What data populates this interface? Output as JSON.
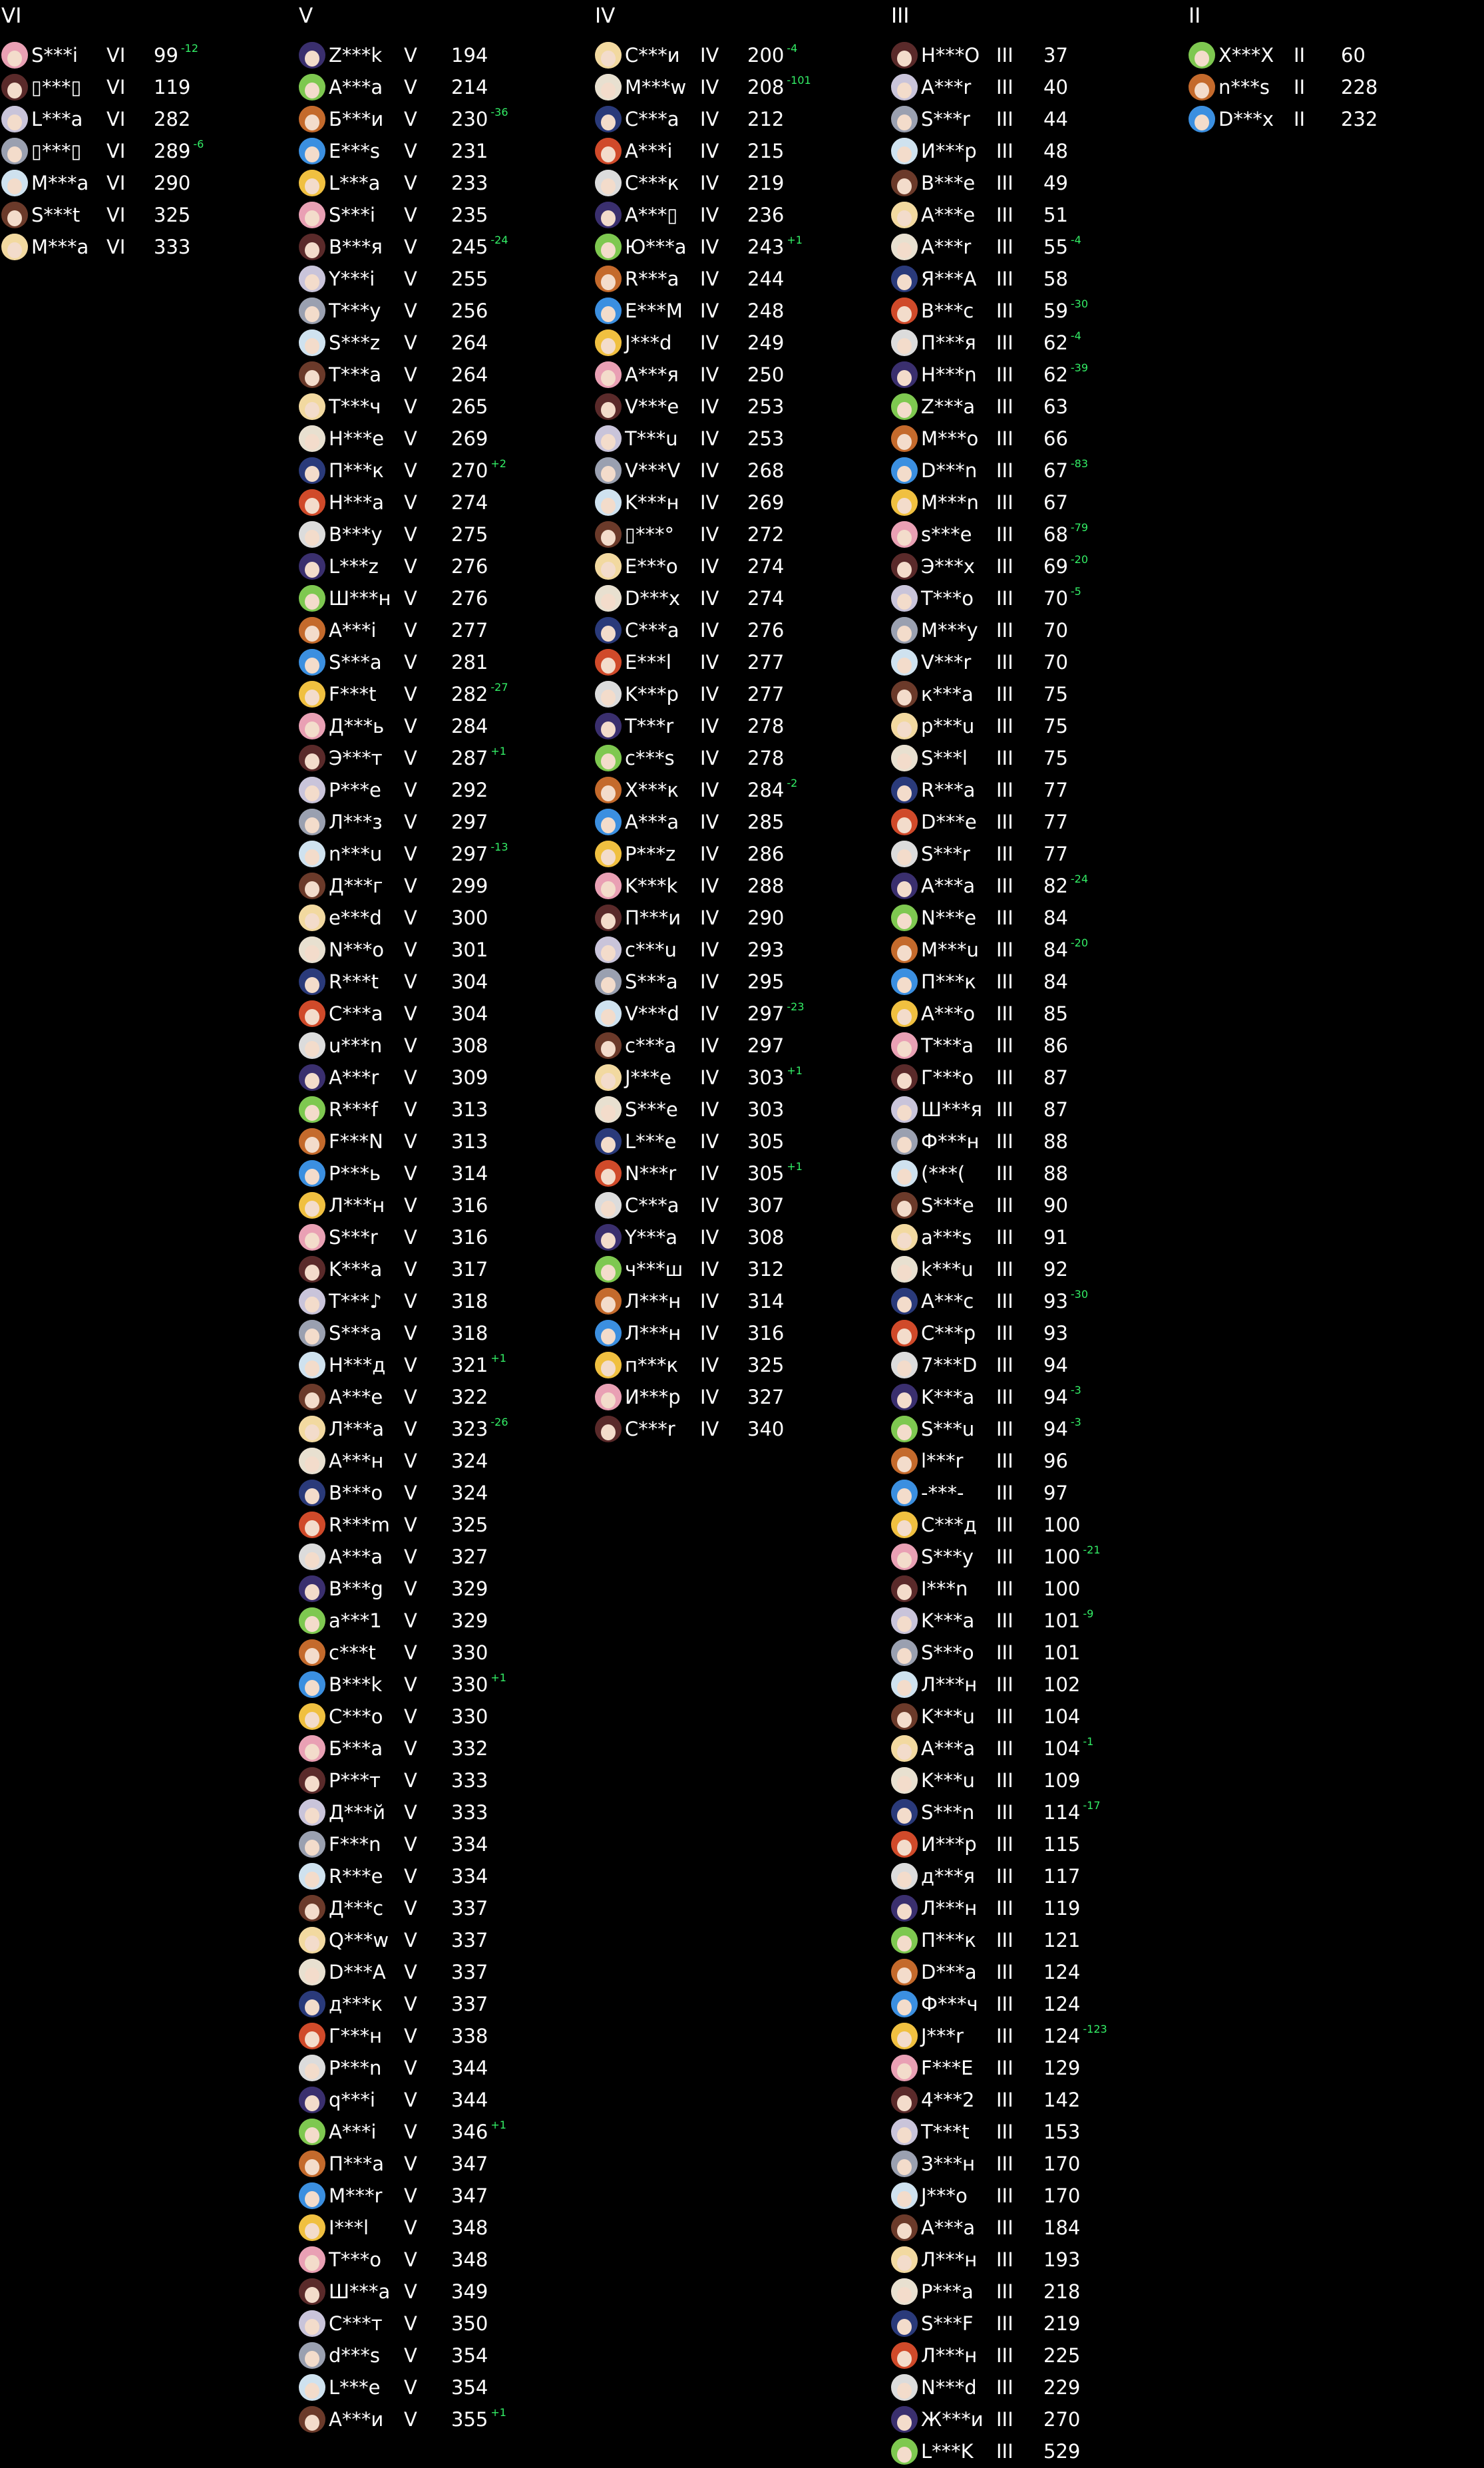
{
  "colors": {
    "background": "#000000",
    "text": "#ffffff",
    "delta": "#33ee66"
  },
  "columns": [
    {
      "header": "VI",
      "rows": [
        [
          "S***i",
          "VI",
          "99",
          "-12"
        ],
        [
          "▯***▯",
          "VI",
          "119",
          ""
        ],
        [
          "L***a",
          "VI",
          "282",
          ""
        ],
        [
          "▯***▯",
          "VI",
          "289",
          "-6"
        ],
        [
          "M***a",
          "VI",
          "290",
          ""
        ],
        [
          "S***t",
          "VI",
          "325",
          ""
        ],
        [
          "M***a",
          "VI",
          "333",
          ""
        ]
      ]
    },
    {
      "header": "V",
      "rows": [
        [
          "Z***k",
          "V",
          "194",
          ""
        ],
        [
          "A***a",
          "V",
          "214",
          ""
        ],
        [
          "Б***и",
          "V",
          "230",
          "-36"
        ],
        [
          "E***s",
          "V",
          "231",
          ""
        ],
        [
          "L***a",
          "V",
          "233",
          ""
        ],
        [
          "S***i",
          "V",
          "235",
          ""
        ],
        [
          "B***я",
          "V",
          "245",
          "-24"
        ],
        [
          "Y***i",
          "V",
          "255",
          ""
        ],
        [
          "T***y",
          "V",
          "256",
          ""
        ],
        [
          "S***z",
          "V",
          "264",
          ""
        ],
        [
          "T***a",
          "V",
          "264",
          ""
        ],
        [
          "T***ч",
          "V",
          "265",
          ""
        ],
        [
          "H***e",
          "V",
          "269",
          ""
        ],
        [
          "П***к",
          "V",
          "270",
          "+2"
        ],
        [
          "H***a",
          "V",
          "274",
          ""
        ],
        [
          "B***y",
          "V",
          "275",
          ""
        ],
        [
          "L***z",
          "V",
          "276",
          ""
        ],
        [
          "Ш***н",
          "V",
          "276",
          ""
        ],
        [
          "A***i",
          "V",
          "277",
          ""
        ],
        [
          "S***a",
          "V",
          "281",
          ""
        ],
        [
          "F***t",
          "V",
          "282",
          "-27"
        ],
        [
          "Д***ь",
          "V",
          "284",
          ""
        ],
        [
          "Э***т",
          "V",
          "287",
          "+1"
        ],
        [
          "P***e",
          "V",
          "292",
          ""
        ],
        [
          "Л***з",
          "V",
          "297",
          ""
        ],
        [
          "n***u",
          "V",
          "297",
          "-13"
        ],
        [
          "Д***г",
          "V",
          "299",
          ""
        ],
        [
          "e***d",
          "V",
          "300",
          ""
        ],
        [
          "N***o",
          "V",
          "301",
          ""
        ],
        [
          "R***t",
          "V",
          "304",
          ""
        ],
        [
          "C***a",
          "V",
          "304",
          ""
        ],
        [
          "u***n",
          "V",
          "308",
          ""
        ],
        [
          "A***r",
          "V",
          "309",
          ""
        ],
        [
          "R***f",
          "V",
          "313",
          ""
        ],
        [
          "F***N",
          "V",
          "313",
          ""
        ],
        [
          "P***ь",
          "V",
          "314",
          ""
        ],
        [
          "Л***н",
          "V",
          "316",
          ""
        ],
        [
          "S***r",
          "V",
          "316",
          ""
        ],
        [
          "K***a",
          "V",
          "317",
          ""
        ],
        [
          "T***♪",
          "V",
          "318",
          ""
        ],
        [
          "S***a",
          "V",
          "318",
          ""
        ],
        [
          "H***д",
          "V",
          "321",
          "+1"
        ],
        [
          "A***e",
          "V",
          "322",
          ""
        ],
        [
          "Л***a",
          "V",
          "323",
          "-26"
        ],
        [
          "A***н",
          "V",
          "324",
          ""
        ],
        [
          "B***o",
          "V",
          "324",
          ""
        ],
        [
          "R***m",
          "V",
          "325",
          ""
        ],
        [
          "A***a",
          "V",
          "327",
          ""
        ],
        [
          "B***g",
          "V",
          "329",
          ""
        ],
        [
          "a***1",
          "V",
          "329",
          ""
        ],
        [
          "c***t",
          "V",
          "330",
          ""
        ],
        [
          "B***k",
          "V",
          "330",
          "+1"
        ],
        [
          "C***o",
          "V",
          "330",
          ""
        ],
        [
          "Б***a",
          "V",
          "332",
          ""
        ],
        [
          "P***т",
          "V",
          "333",
          ""
        ],
        [
          "Д***й",
          "V",
          "333",
          ""
        ],
        [
          "F***n",
          "V",
          "334",
          ""
        ],
        [
          "R***e",
          "V",
          "334",
          ""
        ],
        [
          "Д***c",
          "V",
          "337",
          ""
        ],
        [
          "Q***w",
          "V",
          "337",
          ""
        ],
        [
          "D***A",
          "V",
          "337",
          ""
        ],
        [
          "д***к",
          "V",
          "337",
          ""
        ],
        [
          "Г***н",
          "V",
          "338",
          ""
        ],
        [
          "P***n",
          "V",
          "344",
          ""
        ],
        [
          "q***i",
          "V",
          "344",
          ""
        ],
        [
          "A***i",
          "V",
          "346",
          "+1"
        ],
        [
          "П***a",
          "V",
          "347",
          ""
        ],
        [
          "M***r",
          "V",
          "347",
          ""
        ],
        [
          "I***l",
          "V",
          "348",
          ""
        ],
        [
          "T***o",
          "V",
          "348",
          ""
        ],
        [
          "Ш***a",
          "V",
          "349",
          ""
        ],
        [
          "C***т",
          "V",
          "350",
          ""
        ],
        [
          "d***s",
          "V",
          "354",
          ""
        ],
        [
          "L***e",
          "V",
          "354",
          ""
        ],
        [
          "A***и",
          "V",
          "355",
          "+1"
        ]
      ]
    },
    {
      "header": "IV",
      "rows": [
        [
          "C***и",
          "IV",
          "200",
          "-4"
        ],
        [
          "M***w",
          "IV",
          "208",
          "-101"
        ],
        [
          "C***a",
          "IV",
          "212",
          ""
        ],
        [
          "A***i",
          "IV",
          "215",
          ""
        ],
        [
          "C***к",
          "IV",
          "219",
          ""
        ],
        [
          "A***▯",
          "IV",
          "236",
          ""
        ],
        [
          "Ю***a",
          "IV",
          "243",
          "+1"
        ],
        [
          "R***a",
          "IV",
          "244",
          ""
        ],
        [
          "E***M",
          "IV",
          "248",
          ""
        ],
        [
          "J***d",
          "IV",
          "249",
          ""
        ],
        [
          "A***я",
          "IV",
          "250",
          ""
        ],
        [
          "V***e",
          "IV",
          "253",
          ""
        ],
        [
          "T***u",
          "IV",
          "253",
          ""
        ],
        [
          "V***V",
          "IV",
          "268",
          ""
        ],
        [
          "K***н",
          "IV",
          "269",
          ""
        ],
        [
          "▯***°",
          "IV",
          "272",
          ""
        ],
        [
          "E***o",
          "IV",
          "274",
          ""
        ],
        [
          "D***x",
          "IV",
          "274",
          ""
        ],
        [
          "C***a",
          "IV",
          "276",
          ""
        ],
        [
          "E***l",
          "IV",
          "277",
          ""
        ],
        [
          "K***p",
          "IV",
          "277",
          ""
        ],
        [
          "T***r",
          "IV",
          "278",
          ""
        ],
        [
          "c***s",
          "IV",
          "278",
          ""
        ],
        [
          "X***к",
          "IV",
          "284",
          "-2"
        ],
        [
          "A***a",
          "IV",
          "285",
          ""
        ],
        [
          "P***z",
          "IV",
          "286",
          ""
        ],
        [
          "K***k",
          "IV",
          "288",
          ""
        ],
        [
          "П***и",
          "IV",
          "290",
          ""
        ],
        [
          "c***u",
          "IV",
          "293",
          ""
        ],
        [
          "S***a",
          "IV",
          "295",
          ""
        ],
        [
          "V***d",
          "IV",
          "297",
          "-23"
        ],
        [
          "c***a",
          "IV",
          "297",
          ""
        ],
        [
          "J***e",
          "IV",
          "303",
          "+1"
        ],
        [
          "S***e",
          "IV",
          "303",
          ""
        ],
        [
          "L***e",
          "IV",
          "305",
          ""
        ],
        [
          "N***r",
          "IV",
          "305",
          "+1"
        ],
        [
          "C***a",
          "IV",
          "307",
          ""
        ],
        [
          "Y***a",
          "IV",
          "308",
          ""
        ],
        [
          "ч***ш",
          "IV",
          "312",
          ""
        ],
        [
          "Л***н",
          "IV",
          "314",
          ""
        ],
        [
          "Л***н",
          "IV",
          "316",
          ""
        ],
        [
          "п***к",
          "IV",
          "325",
          ""
        ],
        [
          "И***p",
          "IV",
          "327",
          ""
        ],
        [
          "C***r",
          "IV",
          "340",
          ""
        ]
      ]
    },
    {
      "header": "III",
      "rows": [
        [
          "H***O",
          "III",
          "37",
          ""
        ],
        [
          "A***r",
          "III",
          "40",
          ""
        ],
        [
          "S***r",
          "III",
          "44",
          ""
        ],
        [
          "И***p",
          "III",
          "48",
          ""
        ],
        [
          "B***e",
          "III",
          "49",
          ""
        ],
        [
          "A***e",
          "III",
          "51",
          ""
        ],
        [
          "A***r",
          "III",
          "55",
          "-4"
        ],
        [
          "Я***A",
          "III",
          "58",
          ""
        ],
        [
          "B***c",
          "III",
          "59",
          "-30"
        ],
        [
          "П***я",
          "III",
          "62",
          "-4"
        ],
        [
          "H***n",
          "III",
          "62",
          "-39"
        ],
        [
          "Z***a",
          "III",
          "63",
          ""
        ],
        [
          "M***o",
          "III",
          "66",
          ""
        ],
        [
          "D***n",
          "III",
          "67",
          "-83"
        ],
        [
          "M***n",
          "III",
          "67",
          ""
        ],
        [
          "s***e",
          "III",
          "68",
          "-79"
        ],
        [
          "Э***x",
          "III",
          "69",
          "-20"
        ],
        [
          "T***o",
          "III",
          "70",
          "-5"
        ],
        [
          "M***y",
          "III",
          "70",
          ""
        ],
        [
          "V***r",
          "III",
          "70",
          ""
        ],
        [
          "к***a",
          "III",
          "75",
          ""
        ],
        [
          "p***u",
          "III",
          "75",
          ""
        ],
        [
          "S***l",
          "III",
          "75",
          ""
        ],
        [
          "R***a",
          "III",
          "77",
          ""
        ],
        [
          "D***e",
          "III",
          "77",
          ""
        ],
        [
          "S***r",
          "III",
          "77",
          ""
        ],
        [
          "A***a",
          "III",
          "82",
          "-24"
        ],
        [
          "N***e",
          "III",
          "84",
          ""
        ],
        [
          "M***u",
          "III",
          "84",
          "-20"
        ],
        [
          "П***к",
          "III",
          "84",
          ""
        ],
        [
          "A***o",
          "III",
          "85",
          ""
        ],
        [
          "T***a",
          "III",
          "86",
          ""
        ],
        [
          "Г***o",
          "III",
          "87",
          ""
        ],
        [
          "Ш***я",
          "III",
          "87",
          ""
        ],
        [
          "Ф***н",
          "III",
          "88",
          ""
        ],
        [
          "(***(",
          "III",
          "88",
          ""
        ],
        [
          "S***e",
          "III",
          "90",
          ""
        ],
        [
          "a***s",
          "III",
          "91",
          ""
        ],
        [
          "k***u",
          "III",
          "92",
          ""
        ],
        [
          "A***c",
          "III",
          "93",
          "-30"
        ],
        [
          "C***p",
          "III",
          "93",
          ""
        ],
        [
          "7***D",
          "III",
          "94",
          ""
        ],
        [
          "K***a",
          "III",
          "94",
          "-3"
        ],
        [
          "S***u",
          "III",
          "94",
          "-3"
        ],
        [
          "l***r",
          "III",
          "96",
          ""
        ],
        [
          "-***-",
          "III",
          "97",
          ""
        ],
        [
          "C***д",
          "III",
          "100",
          ""
        ],
        [
          "S***y",
          "III",
          "100",
          "-21"
        ],
        [
          "I***n",
          "III",
          "100",
          ""
        ],
        [
          "K***a",
          "III",
          "101",
          "-9"
        ],
        [
          "S***o",
          "III",
          "101",
          ""
        ],
        [
          "Л***н",
          "III",
          "102",
          ""
        ],
        [
          "K***u",
          "III",
          "104",
          ""
        ],
        [
          "A***a",
          "III",
          "104",
          "-1"
        ],
        [
          "K***u",
          "III",
          "109",
          ""
        ],
        [
          "S***n",
          "III",
          "114",
          "-17"
        ],
        [
          "И***p",
          "III",
          "115",
          ""
        ],
        [
          "д***я",
          "III",
          "117",
          ""
        ],
        [
          "Л***н",
          "III",
          "119",
          ""
        ],
        [
          "П***к",
          "III",
          "121",
          ""
        ],
        [
          "D***a",
          "III",
          "124",
          ""
        ],
        [
          "Ф***ч",
          "III",
          "124",
          ""
        ],
        [
          "J***r",
          "III",
          "124",
          "-123"
        ],
        [
          "F***E",
          "III",
          "129",
          ""
        ],
        [
          "4***2",
          "III",
          "142",
          ""
        ],
        [
          "T***t",
          "III",
          "153",
          ""
        ],
        [
          "З***н",
          "III",
          "170",
          ""
        ],
        [
          "J***o",
          "III",
          "170",
          ""
        ],
        [
          "A***a",
          "III",
          "184",
          ""
        ],
        [
          "Л***н",
          "III",
          "193",
          ""
        ],
        [
          "P***a",
          "III",
          "218",
          ""
        ],
        [
          "S***F",
          "III",
          "219",
          ""
        ],
        [
          "Л***н",
          "III",
          "225",
          ""
        ],
        [
          "N***d",
          "III",
          "229",
          ""
        ],
        [
          "Ж***и",
          "III",
          "270",
          ""
        ],
        [
          "L***K",
          "III",
          "529",
          ""
        ]
      ]
    },
    {
      "header": "II",
      "rows": [
        [
          "X***X",
          "II",
          "60",
          ""
        ],
        [
          "n***s",
          "II",
          "228",
          ""
        ],
        [
          "D***x",
          "II",
          "232",
          ""
        ]
      ]
    }
  ]
}
